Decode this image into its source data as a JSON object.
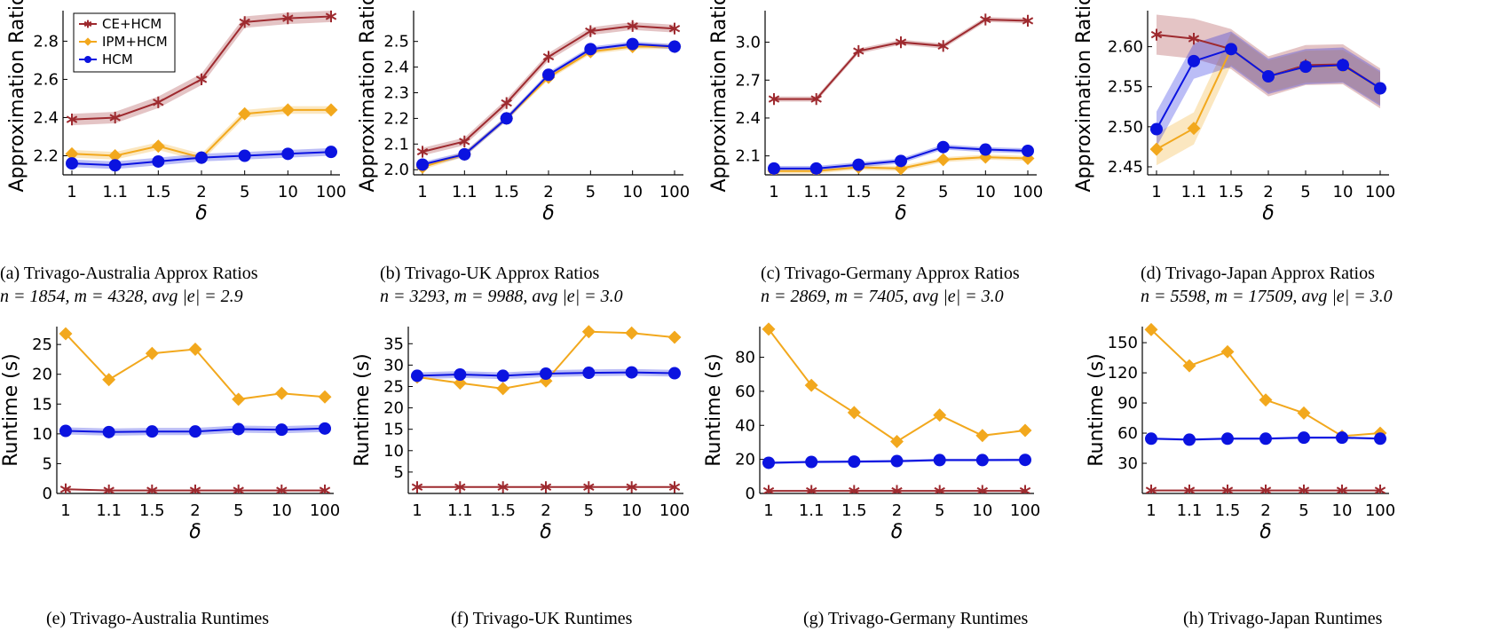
{
  "series_legend": [
    {
      "name": "CE+HCM",
      "color": "#9e2a2f",
      "marker": "star"
    },
    {
      "name": "IPM+HCM",
      "color": "#f2a81d",
      "marker": "diamond"
    },
    {
      "name": "HCM",
      "color": "#0b13e0",
      "marker": "circle"
    }
  ],
  "captions": [
    {
      "label": "(a)",
      "text": "Trivago-Australia Approx Ratios",
      "stats": "n = 1854, m = 4328, avg |e| = 2.9"
    },
    {
      "label": "(b)",
      "text": "Trivago-UK Approx Ratios",
      "stats": "n = 3293, m = 9988, avg |e| = 3.0"
    },
    {
      "label": "(c)",
      "text": "Trivago-Germany Approx Ratios",
      "stats": "n = 2869, m = 7405, avg |e| = 3.0"
    },
    {
      "label": "(d)",
      "text": "Trivago-Japan Approx Ratios",
      "stats": "n = 5598, m = 17509, avg |e| = 3.0"
    },
    {
      "label": "(e)",
      "text": "Trivago-Australia Runtimes",
      "stats": ""
    },
    {
      "label": "(f)",
      "text": "Trivago-UK Runtimes",
      "stats": ""
    },
    {
      "label": "(g)",
      "text": "Trivago-Germany Runtimes",
      "stats": ""
    },
    {
      "label": "(h)",
      "text": "Trivago-Japan Runtimes",
      "stats": ""
    }
  ],
  "chart_data": [
    {
      "type": "line",
      "categories": [
        "1",
        "1.1",
        "1.5",
        "2",
        "5",
        "10",
        "100"
      ],
      "xlabel": "δ",
      "ylabel": "Approximation Ratio",
      "ylim": [
        2.1,
        2.96
      ],
      "yticks": [
        2.2,
        2.4,
        2.6,
        2.8
      ],
      "ytick_labels": [
        "2.2",
        "2.4",
        "2.6",
        "2.8"
      ],
      "legend": "top-left",
      "series": [
        {
          "name": "CE+HCM",
          "values": [
            2.39,
            2.4,
            2.48,
            2.6,
            2.9,
            2.92,
            2.93
          ],
          "band": 0.03
        },
        {
          "name": "IPM+HCM",
          "values": [
            2.21,
            2.2,
            2.25,
            2.19,
            2.42,
            2.44,
            2.44
          ],
          "band": 0.02
        },
        {
          "name": "HCM",
          "values": [
            2.16,
            2.15,
            2.17,
            2.19,
            2.2,
            2.21,
            2.22
          ],
          "band": 0.02
        }
      ]
    },
    {
      "type": "line",
      "categories": [
        "1",
        "1.1",
        "1.5",
        "2",
        "5",
        "10",
        "100"
      ],
      "xlabel": "δ",
      "ylabel": "Approximation Ratio",
      "ylim": [
        1.98,
        2.62
      ],
      "yticks": [
        2.0,
        2.1,
        2.2,
        2.3,
        2.4,
        2.5
      ],
      "ytick_labels": [
        "2.0",
        "2.1",
        "2.2",
        "2.3",
        "2.4",
        "2.5"
      ],
      "series": [
        {
          "name": "CE+HCM",
          "values": [
            2.07,
            2.11,
            2.26,
            2.44,
            2.54,
            2.56,
            2.55
          ],
          "band": 0.015
        },
        {
          "name": "IPM+HCM",
          "values": [
            2.01,
            2.06,
            2.2,
            2.36,
            2.46,
            2.48,
            2.48
          ],
          "band": 0.01
        },
        {
          "name": "HCM",
          "values": [
            2.02,
            2.06,
            2.2,
            2.37,
            2.47,
            2.49,
            2.48
          ],
          "band": 0.01
        }
      ]
    },
    {
      "type": "line",
      "categories": [
        "1",
        "1.1",
        "1.5",
        "2",
        "5",
        "10",
        "100"
      ],
      "xlabel": "δ",
      "ylabel": "Approximation Ratio",
      "ylim": [
        1.95,
        3.25
      ],
      "yticks": [
        2.1,
        2.4,
        2.7,
        3.0
      ],
      "ytick_labels": [
        "2.1",
        "2.4",
        "2.7",
        "3.0"
      ],
      "series": [
        {
          "name": "CE+HCM",
          "values": [
            2.55,
            2.55,
            2.93,
            3.0,
            2.97,
            3.18,
            3.17
          ],
          "band": 0.02
        },
        {
          "name": "IPM+HCM",
          "values": [
            1.98,
            1.98,
            2.01,
            2.0,
            2.07,
            2.09,
            2.08
          ],
          "band": 0.02
        },
        {
          "name": "HCM",
          "values": [
            2.0,
            2.0,
            2.03,
            2.06,
            2.17,
            2.15,
            2.14
          ],
          "band": 0.02
        }
      ]
    },
    {
      "type": "line",
      "categories": [
        "1",
        "1.1",
        "1.5",
        "2",
        "5",
        "10",
        "100"
      ],
      "xlabel": "δ",
      "ylabel": "Approximation Ratio",
      "ylim": [
        2.44,
        2.645
      ],
      "yticks": [
        2.45,
        2.5,
        2.55,
        2.6
      ],
      "ytick_labels": [
        "2.45",
        "2.50",
        "2.55",
        "2.60"
      ],
      "series": [
        {
          "name": "CE+HCM",
          "values": [
            2.615,
            2.61,
            2.597,
            2.563,
            2.577,
            2.578,
            2.548
          ],
          "band": 0.025
        },
        {
          "name": "IPM+HCM",
          "values": [
            2.472,
            2.498,
            2.597,
            2.563,
            2.575,
            2.576,
            2.548
          ],
          "band": 0.02
        },
        {
          "name": "HCM",
          "values": [
            2.497,
            2.582,
            2.597,
            2.563,
            2.575,
            2.577,
            2.548
          ],
          "band": 0.022
        }
      ]
    },
    {
      "type": "line",
      "categories": [
        "1",
        "1.1",
        "1.5",
        "2",
        "5",
        "10",
        "100"
      ],
      "xlabel": "δ",
      "ylabel": "Runtime (s)",
      "ylim": [
        0,
        28
      ],
      "yticks": [
        0,
        5,
        10,
        15,
        20,
        25
      ],
      "ytick_labels": [
        "0",
        "5",
        "10",
        "15",
        "20",
        "25"
      ],
      "series": [
        {
          "name": "CE+HCM",
          "values": [
            0.7,
            0.5,
            0.5,
            0.5,
            0.5,
            0.5,
            0.5
          ],
          "band": 0
        },
        {
          "name": "IPM+HCM",
          "values": [
            26.8,
            19.1,
            23.5,
            24.2,
            15.8,
            16.8,
            16.2
          ],
          "band": 0
        },
        {
          "name": "HCM",
          "values": [
            10.5,
            10.3,
            10.4,
            10.4,
            10.8,
            10.7,
            10.9
          ],
          "band": 0.6
        }
      ]
    },
    {
      "type": "line",
      "categories": [
        "1",
        "1.1",
        "1.5",
        "2",
        "5",
        "10",
        "100"
      ],
      "xlabel": "δ",
      "ylabel": "Runtime (s)",
      "ylim": [
        0,
        39
      ],
      "yticks": [
        5,
        10,
        15,
        20,
        25,
        30,
        35
      ],
      "ytick_labels": [
        "5",
        "10",
        "15",
        "20",
        "25",
        "30",
        "35"
      ],
      "series": [
        {
          "name": "CE+HCM",
          "values": [
            1.5,
            1.5,
            1.5,
            1.5,
            1.5,
            1.5,
            1.5
          ],
          "band": 0
        },
        {
          "name": "IPM+HCM",
          "values": [
            27.2,
            25.8,
            24.5,
            26.3,
            37.8,
            37.5,
            36.5
          ],
          "band": 0
        },
        {
          "name": "HCM",
          "values": [
            27.5,
            27.8,
            27.5,
            28.0,
            28.2,
            28.3,
            28.1
          ],
          "band": 0.8
        }
      ]
    },
    {
      "type": "line",
      "categories": [
        "1",
        "1.1",
        "1.5",
        "2",
        "5",
        "10",
        "100"
      ],
      "xlabel": "δ",
      "ylabel": "Runtime (s)",
      "ylim": [
        0,
        98
      ],
      "yticks": [
        0,
        20,
        40,
        60,
        80
      ],
      "ytick_labels": [
        "0",
        "20",
        "40",
        "60",
        "80"
      ],
      "series": [
        {
          "name": "CE+HCM",
          "values": [
            1.5,
            1.5,
            1.5,
            1.5,
            1.5,
            1.5,
            1.5
          ],
          "band": 0
        },
        {
          "name": "IPM+HCM",
          "values": [
            96.5,
            63.5,
            47.5,
            30.5,
            46.0,
            34.0,
            37.0
          ],
          "band": 0
        },
        {
          "name": "HCM",
          "values": [
            18.0,
            18.5,
            18.7,
            19.0,
            19.6,
            19.6,
            19.7
          ],
          "band": 0.8
        }
      ]
    },
    {
      "type": "line",
      "categories": [
        "1",
        "1.1",
        "1.5",
        "2",
        "5",
        "10",
        "100"
      ],
      "xlabel": "δ",
      "ylabel": "Runtime (s)",
      "ylim": [
        0,
        166
      ],
      "yticks": [
        30,
        60,
        90,
        120,
        150
      ],
      "ytick_labels": [
        "30",
        "60",
        "90",
        "120",
        "150"
      ],
      "series": [
        {
          "name": "CE+HCM",
          "values": [
            3,
            3,
            3,
            3,
            3,
            3,
            3
          ],
          "band": 0
        },
        {
          "name": "IPM+HCM",
          "values": [
            163,
            127,
            141,
            93,
            80,
            57,
            60
          ],
          "band": 0
        },
        {
          "name": "HCM",
          "values": [
            54.5,
            53.5,
            54.5,
            54.5,
            55.5,
            55.5,
            54.5
          ],
          "band": 1.2
        }
      ]
    }
  ]
}
